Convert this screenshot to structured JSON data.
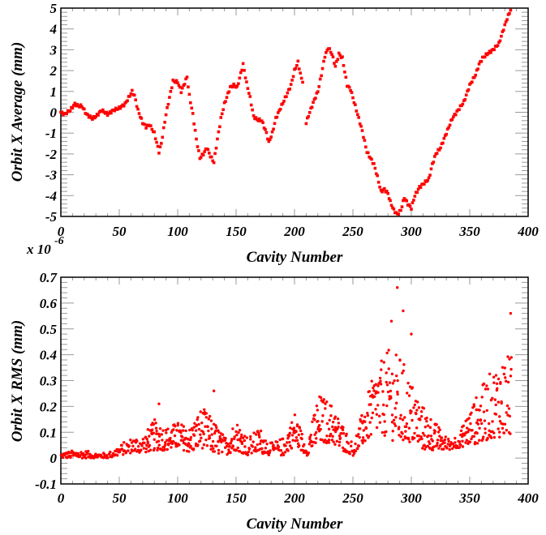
{
  "chart_data": [
    {
      "type": "scatter",
      "xlabel": "Cavity Number",
      "ylabel": "Orbit X Average (mm)",
      "multiplier_label": "x 10",
      "multiplier_exponent": "-6",
      "xlim": [
        0,
        400
      ],
      "ylim": [
        -5,
        5
      ],
      "xticks": [
        "0",
        "50",
        "100",
        "150",
        "200",
        "250",
        "300",
        "350",
        "400"
      ],
      "yticks": [
        "-5",
        "-4",
        "-3",
        "-2",
        "-1",
        "0",
        "1",
        "2",
        "3",
        "4",
        "5"
      ],
      "grid": false,
      "marker_color": "#ff0000",
      "marker": "square",
      "points_x": [
        0,
        3,
        8,
        12,
        15,
        18,
        22,
        27,
        30,
        35,
        40,
        45,
        50,
        55,
        58,
        61,
        63,
        66,
        70,
        73,
        76,
        80,
        84,
        86,
        90,
        93,
        96,
        100,
        103,
        106,
        108,
        110,
        113,
        116,
        119,
        122,
        125,
        128,
        131,
        134,
        137,
        140,
        145,
        148,
        151,
        156,
        159,
        162,
        165,
        168,
        172,
        176,
        178,
        181,
        184,
        188,
        193,
        197,
        200,
        203,
        206,
        208,
        210,
        213,
        217,
        220,
        223,
        226,
        229,
        232,
        235,
        238,
        241,
        245,
        248,
        251,
        255,
        258,
        262,
        265,
        268,
        271,
        274,
        277,
        280,
        282,
        285,
        288,
        291,
        294,
        297,
        300,
        303,
        307,
        311,
        315,
        318,
        321,
        325,
        330,
        335,
        340,
        345,
        350,
        355,
        358,
        361,
        365,
        370,
        375,
        379,
        382,
        385
      ],
      "points_y": [
        0,
        -0.1,
        0.1,
        0.4,
        0.3,
        0.3,
        -0.1,
        -0.3,
        -0.2,
        0.1,
        -0.1,
        0.1,
        0.2,
        0.4,
        0.7,
        1.0,
        0.8,
        0.1,
        -0.5,
        -0.7,
        -0.6,
        -1.0,
        -1.9,
        -1.5,
        -0.1,
        0.7,
        1.5,
        1.45,
        1.0,
        1.4,
        1.7,
        0.8,
        -0.1,
        -1.3,
        -2.2,
        -2.0,
        -1.7,
        -2.1,
        -2.4,
        -1.3,
        -0.3,
        0.4,
        1.2,
        1.3,
        1.2,
        2.3,
        1.4,
        0.7,
        -0.2,
        -0.35,
        -0.4,
        -1.0,
        -1.45,
        -1.0,
        -0.3,
        0.2,
        0.8,
        1.3,
        2.0,
        2.4,
        1.6,
        1.4,
        -0.5,
        0.0,
        0.6,
        1.0,
        1.8,
        2.7,
        3.1,
        2.8,
        2.2,
        2.8,
        2.6,
        1.3,
        1.1,
        0.5,
        -0.3,
        -0.9,
        -1.9,
        -2.2,
        -2.5,
        -3.1,
        -3.8,
        -3.7,
        -3.9,
        -4.3,
        -4.7,
        -4.9,
        -4.7,
        -4.1,
        -4.4,
        -4.6,
        -4.0,
        -3.6,
        -3.4,
        -3.2,
        -2.5,
        -2.0,
        -1.7,
        -1.0,
        -0.3,
        0.1,
        0.5,
        1.3,
        1.8,
        2.3,
        2.6,
        2.8,
        3.0,
        3.3,
        4.0,
        4.5,
        4.9
      ]
    },
    {
      "type": "scatter",
      "xlabel": "Cavity Number",
      "ylabel": "Orbit X RMS (mm)",
      "xlim": [
        0,
        400
      ],
      "ylim": [
        -0.1,
        0.7
      ],
      "xticks": [
        "0",
        "50",
        "100",
        "150",
        "200",
        "250",
        "300",
        "350",
        "400"
      ],
      "yticks": [
        "-0.1",
        "0",
        "0.1",
        "0.2",
        "0.3",
        "0.4",
        "0.5",
        "0.6",
        "0.7"
      ],
      "grid": false,
      "marker_color": "#ff0000",
      "marker": "dot",
      "rms_range_bins_start": [
        0,
        10,
        20,
        30,
        40,
        50,
        60,
        70,
        80,
        90,
        100,
        110,
        120,
        130,
        140,
        150,
        160,
        170,
        180,
        190,
        200,
        210,
        220,
        230,
        240,
        250,
        260,
        270,
        280,
        290,
        300,
        310,
        320,
        330,
        340,
        350,
        360,
        370,
        380
      ],
      "rms_range_low": [
        0,
        0,
        0,
        0,
        0,
        0.01,
        0.02,
        0.02,
        0.03,
        0.03,
        0.04,
        0.02,
        0.04,
        0.02,
        0.01,
        0.03,
        0.01,
        0.02,
        0.01,
        0.01,
        0.05,
        0.01,
        0.05,
        0.06,
        0.03,
        0.01,
        0.06,
        0.1,
        0.08,
        0.05,
        0.06,
        0.03,
        0.03,
        0.03,
        0.04,
        0.05,
        0.06,
        0.08,
        0.08
      ],
      "rms_range_high": [
        0.02,
        0.03,
        0.03,
        0.02,
        0.02,
        0.05,
        0.08,
        0.09,
        0.15,
        0.12,
        0.14,
        0.12,
        0.2,
        0.15,
        0.08,
        0.15,
        0.08,
        0.12,
        0.06,
        0.08,
        0.18,
        0.05,
        0.25,
        0.22,
        0.14,
        0.05,
        0.22,
        0.35,
        0.42,
        0.4,
        0.3,
        0.2,
        0.14,
        0.08,
        0.09,
        0.2,
        0.28,
        0.35,
        0.4
      ],
      "outliers_x": [
        288,
        293,
        283,
        385,
        300,
        131,
        84
      ],
      "outliers_y": [
        0.66,
        0.57,
        0.53,
        0.56,
        0.48,
        0.26,
        0.21
      ]
    }
  ]
}
